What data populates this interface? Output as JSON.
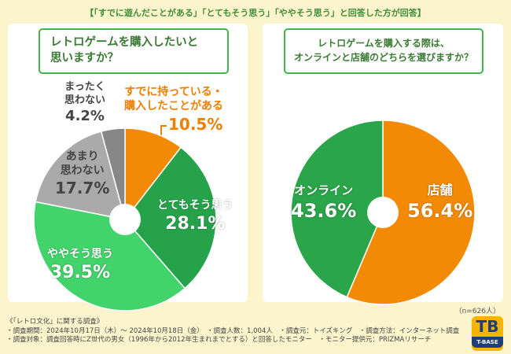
{
  "header": {
    "subtitle": "【「すでに遊んだことがある」「とてもそう思う」「ややそう思う」と回答した方が回答】"
  },
  "chart_data": [
    {
      "type": "pie",
      "title": "レトロゲームを購入したいと思いますか？",
      "slices": [
        {
          "label": "すでに持っている・購入したことがある",
          "value": 10.5,
          "pct": "10.5%",
          "color": "#f28a05"
        },
        {
          "label": "とてもそう思う",
          "value": 28.1,
          "pct": "28.1%",
          "color": "#26a34a"
        },
        {
          "label": "ややそう思う",
          "value": 39.5,
          "pct": "39.5%",
          "color": "#43d36b"
        },
        {
          "label": "あまり思わない",
          "value": 17.7,
          "pct": "17.7%",
          "color": "#aaaaaa"
        },
        {
          "label": "まったく思わない",
          "value": 4.2,
          "pct": "4.2%",
          "color": "#878787"
        }
      ]
    },
    {
      "type": "pie",
      "title": "レトロゲームを購入する際は、オンラインと店舗のどちらを選びますか？",
      "slices": [
        {
          "label": "店舗",
          "value": 56.4,
          "pct": "56.4%",
          "color": "#f28a05"
        },
        {
          "label": "オンライン",
          "value": 43.6,
          "pct": "43.6%",
          "color": "#2ba54a"
        }
      ]
    }
  ],
  "labels": {
    "owned_l1": "すでに持っている・",
    "owned_l2": "購入したことがある",
    "very_l1": "とてもそう思う",
    "some_l1": "ややそう思う",
    "rarely_l1": "あまり",
    "rarely_l2": "思わない",
    "never_l1": "まったく",
    "never_l2": "思わない",
    "store": "店舗",
    "online": "オンライン"
  },
  "q1_line1": "レトロゲームを購入したいと",
  "q1_line2": "思いますか？",
  "q2_line1": "レトロゲームを購入する際は、",
  "q2_line2": "オンラインと店舗のどちらを選びますか？",
  "n_note": "（n=626人）",
  "footer": {
    "title": "《「レトロ文化」に関する調査》",
    "line1": "・調査期間：2024年10月17日（木）～ 2024年10月18日（金）　・調査人数：1,004人　・調査元：トイズキング　・調査方法：インターネット調査",
    "line2": "・調査対象：調査回答時にZ世代の男女（1996年から2012年生まれまでとする）と回答したモニター　・モニター提供元：PRIZMAリサーチ"
  },
  "logo": {
    "mark": "TB",
    "text": "T-BASE"
  },
  "colors": {
    "background": "#fcf4cc",
    "accent_green": "#3a7a33",
    "orange": "#ee7f00"
  }
}
